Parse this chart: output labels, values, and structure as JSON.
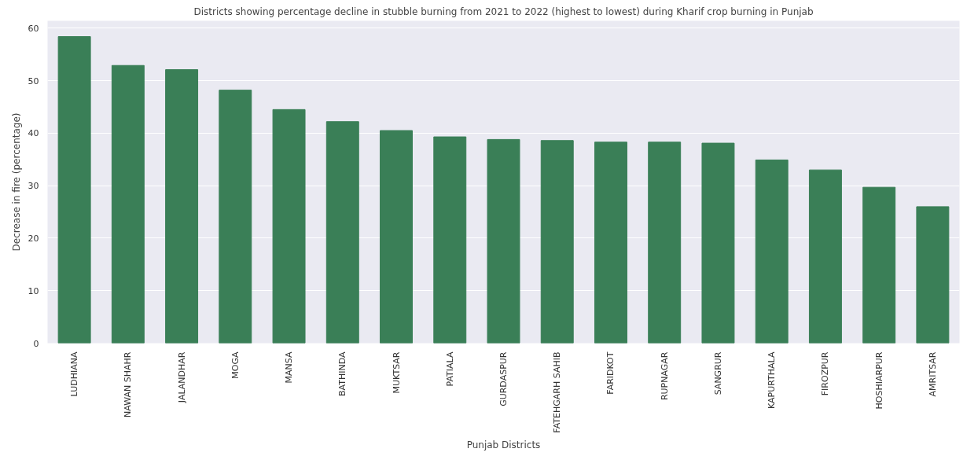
{
  "chart_data": {
    "type": "bar",
    "title": "Districts showing percentage decline in stubble burning from 2021 to 2022 (highest to lowest) during Kharif crop burning in Punjab",
    "xlabel": "Punjab Districts",
    "ylabel": "Decrease in fire (percentage)",
    "categories": [
      "LUDHIANA",
      "NAWAN SHAHR",
      "JALANDHAR",
      "MOGA",
      "MANSA",
      "BATHINDA",
      "MUKTSAR",
      "PATIALA",
      "GURDASPUR",
      "FATEHGARH SAHIB",
      "FARIDKOT",
      "RUPNAGAR",
      "SANGRUR",
      "KAPURTHALA",
      "FIROZPUR",
      "HOSHIARPUR",
      "AMRITSAR"
    ],
    "values": [
      58.4,
      52.9,
      52.1,
      48.2,
      44.5,
      42.2,
      40.5,
      39.3,
      38.8,
      38.6,
      38.3,
      38.3,
      38.1,
      34.9,
      33.0,
      29.7,
      26.0
    ],
    "color": "#3a7f57",
    "ylim": [
      0,
      61.4
    ],
    "yticks": [
      0,
      10,
      20,
      30,
      40,
      50,
      60
    ],
    "grid": "y"
  }
}
